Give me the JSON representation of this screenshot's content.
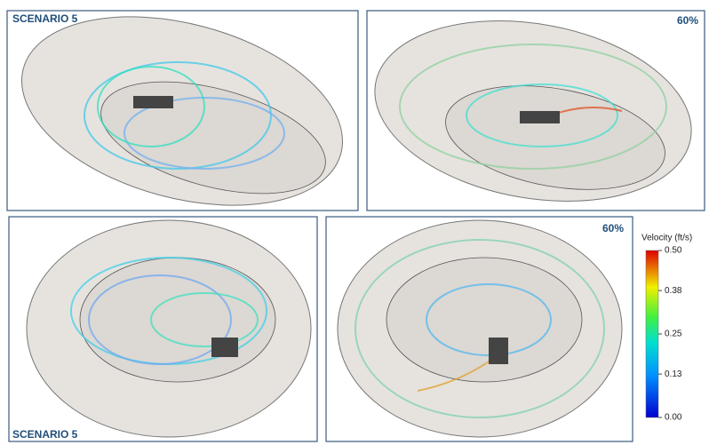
{
  "panels": [
    {
      "label": "SCENARIO 5"
    },
    {
      "label": "60%"
    },
    {
      "label": "SCENARIO 5"
    },
    {
      "label": "60%"
    }
  ],
  "colorbar": {
    "title": "Velocity (ft/s)",
    "lim": [
      0,
      0.5
    ],
    "ticks": [
      {
        "value": 0,
        "label": "0.00"
      },
      0.13,
      0.25,
      0.38,
      {
        "value": 0.5,
        "label": "0.50"
      }
    ]
  }
}
